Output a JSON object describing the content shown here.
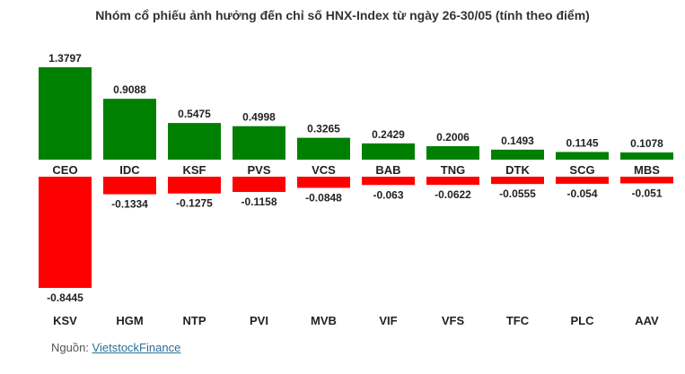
{
  "chart_data": {
    "type": "bar",
    "title": "Nhóm cổ phiếu ảnh hưởng đến chỉ số HNX-Index từ ngày 26-30/05 (tính theo điểm)",
    "colors": {
      "positive": "#008000",
      "negative": "#ff0000"
    },
    "series": [
      {
        "categories": [
          "CEO",
          "IDC",
          "KSF",
          "PVS",
          "VCS",
          "BAB",
          "TNG",
          "DTK",
          "SCG",
          "MBS"
        ],
        "values": [
          1.3797,
          0.9088,
          0.5475,
          0.4998,
          0.3265,
          0.2429,
          0.2006,
          0.1493,
          0.1145,
          0.1078
        ],
        "labels": [
          "1.3797",
          "0.9088",
          "0.5475",
          "0.4998",
          "0.3265",
          "0.2429",
          "0.2006",
          "0.1493",
          "0.1145",
          "0.1078"
        ]
      },
      {
        "categories": [
          "KSV",
          "HGM",
          "NTP",
          "PVI",
          "MVB",
          "VIF",
          "VFS",
          "TFC",
          "PLC",
          "AAV"
        ],
        "values": [
          -0.8445,
          -0.1334,
          -0.1275,
          -0.1158,
          -0.0848,
          -0.063,
          -0.0622,
          -0.0555,
          -0.054,
          -0.051
        ],
        "labels": [
          "-0.8445",
          "-0.1334",
          "-0.1275",
          "-0.1158",
          "-0.0848",
          "-0.063",
          "-0.0622",
          "-0.0555",
          "-0.054",
          "-0.051"
        ]
      }
    ],
    "grid": false,
    "legend": "none"
  },
  "source": {
    "label": "Nguồn:",
    "link_text": "VietstockFinance"
  }
}
